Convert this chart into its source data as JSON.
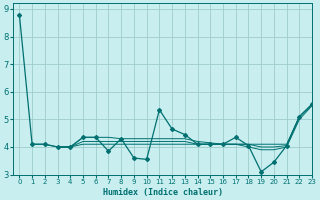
{
  "title": "",
  "xlabel": "Humidex (Indice chaleur)",
  "bg_color": "#c8eef0",
  "grid_color": "#a0cccc",
  "line_color": "#007070",
  "xlim": [
    -0.5,
    23
  ],
  "ylim": [
    3,
    9.2
  ],
  "yticks": [
    3,
    4,
    5,
    6,
    7,
    8,
    9
  ],
  "xticks": [
    0,
    1,
    2,
    3,
    4,
    5,
    6,
    7,
    8,
    9,
    10,
    11,
    12,
    13,
    14,
    15,
    16,
    17,
    18,
    19,
    20,
    21,
    22,
    23
  ],
  "series1": [
    [
      0,
      8.8
    ],
    [
      1,
      4.1
    ],
    [
      2,
      4.1
    ],
    [
      3,
      4.0
    ],
    [
      4,
      4.0
    ],
    [
      5,
      4.35
    ],
    [
      6,
      4.35
    ],
    [
      7,
      3.85
    ],
    [
      8,
      4.3
    ],
    [
      9,
      3.6
    ],
    [
      10,
      3.55
    ],
    [
      11,
      5.35
    ],
    [
      12,
      4.65
    ],
    [
      13,
      4.45
    ],
    [
      14,
      4.1
    ],
    [
      15,
      4.1
    ],
    [
      16,
      4.1
    ],
    [
      17,
      4.35
    ],
    [
      18,
      4.05
    ],
    [
      19,
      3.1
    ],
    [
      20,
      3.45
    ],
    [
      21,
      4.05
    ],
    [
      22,
      5.1
    ],
    [
      23,
      5.55
    ]
  ],
  "series2": [
    [
      1,
      4.1
    ],
    [
      2,
      4.1
    ],
    [
      3,
      4.0
    ],
    [
      4,
      4.0
    ],
    [
      5,
      4.1
    ],
    [
      6,
      4.1
    ],
    [
      7,
      4.1
    ],
    [
      8,
      4.1
    ],
    [
      9,
      4.1
    ],
    [
      10,
      4.1
    ],
    [
      11,
      4.1
    ],
    [
      12,
      4.1
    ],
    [
      13,
      4.1
    ],
    [
      14,
      4.1
    ],
    [
      15,
      4.1
    ],
    [
      16,
      4.1
    ],
    [
      17,
      4.1
    ],
    [
      18,
      4.1
    ],
    [
      19,
      4.1
    ],
    [
      20,
      4.1
    ],
    [
      21,
      4.1
    ],
    [
      22,
      5.1
    ],
    [
      23,
      5.55
    ]
  ],
  "series3": [
    [
      3,
      4.0
    ],
    [
      4,
      4.0
    ],
    [
      5,
      4.2
    ],
    [
      6,
      4.2
    ],
    [
      7,
      4.2
    ],
    [
      8,
      4.2
    ],
    [
      9,
      4.2
    ],
    [
      10,
      4.2
    ],
    [
      11,
      4.2
    ],
    [
      12,
      4.2
    ],
    [
      13,
      4.2
    ],
    [
      14,
      4.1
    ],
    [
      15,
      4.1
    ],
    [
      16,
      4.1
    ],
    [
      17,
      4.1
    ],
    [
      18,
      4.0
    ],
    [
      19,
      3.9
    ],
    [
      20,
      3.9
    ],
    [
      21,
      4.0
    ],
    [
      22,
      5.0
    ],
    [
      23,
      5.5
    ]
  ],
  "series4": [
    [
      3,
      4.0
    ],
    [
      4,
      4.0
    ],
    [
      5,
      4.35
    ],
    [
      6,
      4.35
    ],
    [
      7,
      4.35
    ],
    [
      8,
      4.3
    ],
    [
      9,
      4.3
    ],
    [
      10,
      4.3
    ],
    [
      11,
      4.3
    ],
    [
      12,
      4.3
    ],
    [
      13,
      4.3
    ],
    [
      14,
      4.2
    ],
    [
      15,
      4.15
    ],
    [
      16,
      4.1
    ],
    [
      17,
      4.1
    ],
    [
      18,
      4.1
    ],
    [
      19,
      4.0
    ],
    [
      20,
      4.0
    ],
    [
      21,
      4.05
    ],
    [
      22,
      5.1
    ],
    [
      23,
      5.55
    ]
  ]
}
